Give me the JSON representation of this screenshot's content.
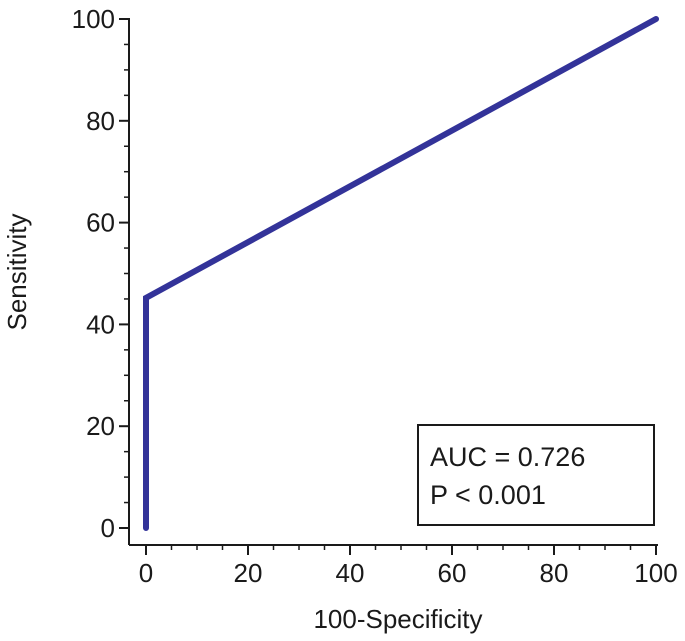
{
  "chart_data": {
    "type": "line",
    "xlabel": "100-Specificity",
    "ylabel": "Sensitivity",
    "xlim": [
      0,
      100
    ],
    "ylim": [
      0,
      100
    ],
    "x_ticks": [
      "0",
      "20",
      "40",
      "60",
      "80",
      "100"
    ],
    "y_ticks": [
      "0",
      "20",
      "40",
      "60",
      "80",
      "100"
    ],
    "grid": false,
    "series": [
      {
        "x": [
          0,
          0,
          100
        ],
        "y": [
          0,
          45.2,
          100
        ],
        "color": "#333399"
      }
    ],
    "annotation": {
      "auc": "AUC = 0.726",
      "p_value": "P < 0.001",
      "placement": "bottom-right"
    }
  }
}
